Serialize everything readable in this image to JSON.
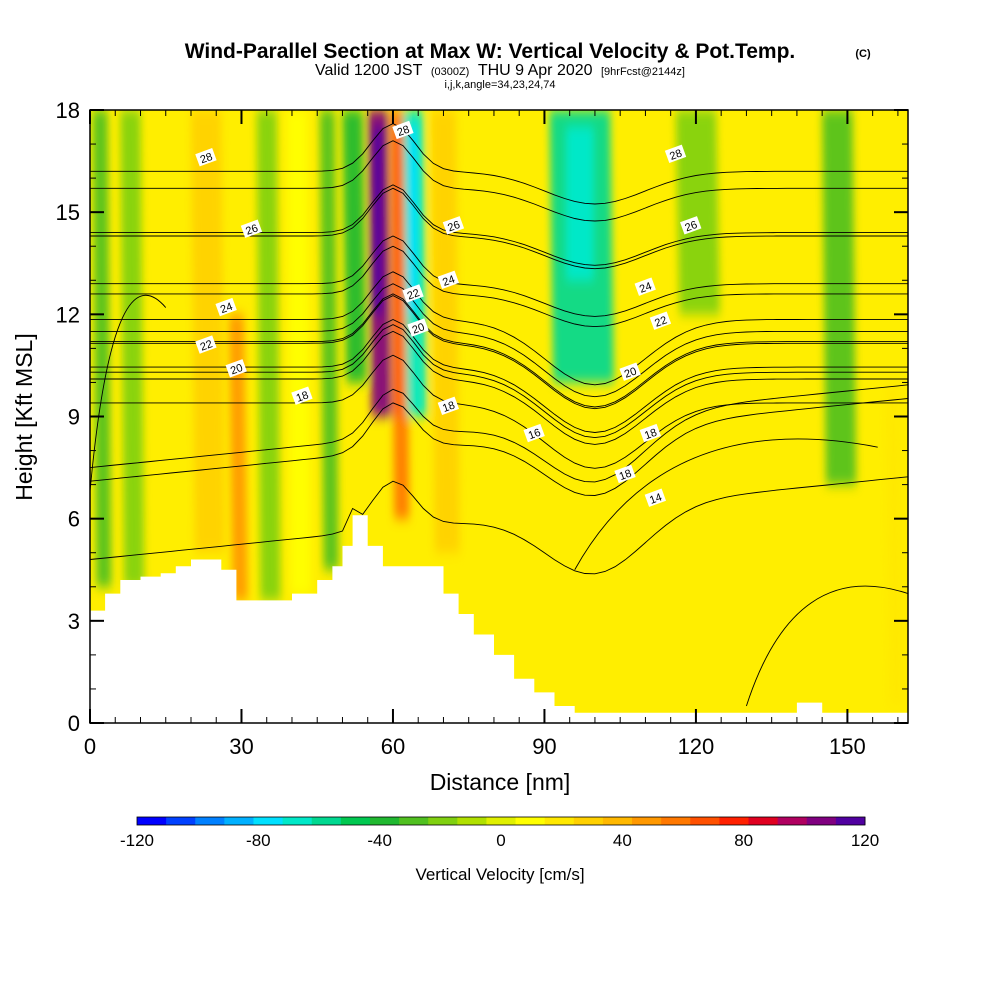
{
  "chart_data": {
    "type": "heatmap",
    "title": "Wind-Parallel Section at Max W: Vertical Velocity & Pot.Temp.",
    "copyright": "(C)",
    "subtitle_valid": "Valid 1200 JST",
    "subtitle_z": "(0300Z)",
    "subtitle_date": "THU 9 Apr 2020",
    "subtitle_fcst": "[9hrFcst@2144z]",
    "subtitle_indices": "i,j,k,angle=34,23,24,74",
    "xlabel": "Distance [nm]",
    "ylabel": "Height [Kft MSL]",
    "xlim": [
      0,
      162
    ],
    "ylim": [
      0,
      18
    ],
    "xticks": [
      "0",
      "30",
      "60",
      "90",
      "120",
      "150"
    ],
    "xtick_values": [
      0,
      30,
      60,
      90,
      120,
      150
    ],
    "yticks": [
      "0",
      "3",
      "6",
      "9",
      "12",
      "15",
      "18"
    ],
    "ytick_values": [
      0,
      3,
      6,
      9,
      12,
      15,
      18
    ],
    "colorbar": {
      "title": "Vertical Velocity [cm/s]",
      "tick_labels": [
        "-120",
        "-80",
        "-40",
        "0",
        "40",
        "80",
        "120"
      ],
      "tick_values": [
        -120,
        -80,
        -40,
        0,
        40,
        80,
        120
      ],
      "range": [
        -120,
        120
      ],
      "colors": [
        "#0000ff",
        "#0040ff",
        "#0080ff",
        "#00b0ff",
        "#00e0ff",
        "#00e8c8",
        "#00d890",
        "#00c850",
        "#20b830",
        "#50c020",
        "#80d010",
        "#b0e000",
        "#e0f000",
        "#ffff00",
        "#ffe800",
        "#ffd000",
        "#ffb800",
        "#ff9800",
        "#ff7800",
        "#ff5000",
        "#ff2000",
        "#e00020",
        "#b00060",
        "#800080",
        "#5000a0"
      ]
    },
    "terrain": {
      "x": [
        0,
        3,
        6,
        10,
        14,
        17,
        20,
        23,
        26,
        29,
        31,
        35,
        40,
        45,
        48,
        50,
        52,
        55,
        58,
        62,
        66,
        70,
        73,
        76,
        80,
        84,
        88,
        92,
        96,
        100,
        104,
        108,
        112,
        116,
        120,
        125,
        130,
        135,
        140,
        145,
        150,
        155,
        160,
        162
      ],
      "y": [
        3.3,
        3.8,
        4.2,
        4.3,
        4.4,
        4.6,
        4.8,
        4.8,
        4.5,
        3.6,
        3.6,
        3.6,
        3.8,
        4.2,
        4.6,
        5.2,
        6.1,
        5.2,
        4.6,
        4.6,
        4.6,
        3.8,
        3.2,
        2.6,
        2.0,
        1.3,
        0.9,
        0.5,
        0.3,
        0.3,
        0.3,
        0.3,
        0.3,
        0.3,
        0.3,
        0.3,
        0.3,
        0.3,
        0.6,
        0.3,
        0.3,
        0.3,
        0.3,
        0.3
      ]
    },
    "velocity_bands": [
      {
        "x": 2,
        "width": 3,
        "value": -30,
        "top": 18,
        "bottom_val": 4
      },
      {
        "x": 8,
        "width": 4,
        "value": -20,
        "top": 18,
        "bottom_val": 4
      },
      {
        "x": 23,
        "width": 6,
        "value": 25,
        "top": 18,
        "bottom_val": 5
      },
      {
        "x": 29,
        "width": 3,
        "value": 45,
        "top": 12,
        "bottom_val": 3.6
      },
      {
        "x": 35,
        "width": 4,
        "value": -20,
        "top": 18,
        "bottom_val": 3.6
      },
      {
        "x": 41,
        "width": 4,
        "value": 10,
        "top": 18,
        "bottom_val": 3.8
      },
      {
        "x": 47,
        "width": 3,
        "value": -25,
        "top": 18,
        "bottom_val": 4.5
      },
      {
        "x": 52,
        "width": 4,
        "value": -40,
        "top": 18,
        "bottom_val": 10
      },
      {
        "x": 57,
        "width": 4,
        "value": 110,
        "top": 18,
        "bottom_val": 9
      },
      {
        "x": 61,
        "width": 3,
        "value": 60,
        "top": 18,
        "bottom_val": 6
      },
      {
        "x": 64,
        "width": 4,
        "value": -70,
        "top": 18,
        "bottom_val": 9
      },
      {
        "x": 70,
        "width": 5,
        "value": 25,
        "top": 18,
        "bottom_val": 5
      },
      {
        "x": 97,
        "width": 12,
        "value": -55,
        "top": 18,
        "bottom_val": 10
      },
      {
        "x": 120,
        "width": 8,
        "value": -20,
        "top": 18,
        "bottom_val": 12
      },
      {
        "x": 148,
        "width": 6,
        "value": -25,
        "top": 18,
        "bottom_val": 7
      },
      {
        "x": 159,
        "width": 3,
        "value": 20,
        "top": 10,
        "bottom_val": 0.5
      }
    ],
    "contours": [
      {
        "label": "28",
        "level": 28,
        "base_y": 16.2
      },
      {
        "label": "26",
        "level": 26,
        "base_y": 14.4
      },
      {
        "label": "24",
        "level": 24,
        "base_y": 12.6
      },
      {
        "label": "22",
        "level": 22,
        "base_y": 11.2
      },
      {
        "label": "20",
        "level": 20,
        "base_y": 10.3
      },
      {
        "label": "18",
        "level": 18,
        "base_y": 9.4
      },
      {
        "label": "16",
        "level": 16,
        "base_y": 8.3
      },
      {
        "label": "14",
        "level": 14,
        "base_y": 6.0
      }
    ],
    "contour_labels": [
      {
        "text": "28",
        "x": 23,
        "y": 16.6
      },
      {
        "text": "28",
        "x": 62,
        "y": 17.4
      },
      {
        "text": "28",
        "x": 116,
        "y": 16.7
      },
      {
        "text": "26",
        "x": 32,
        "y": 14.5
      },
      {
        "text": "26",
        "x": 72,
        "y": 14.6
      },
      {
        "text": "26",
        "x": 119,
        "y": 14.6
      },
      {
        "text": "24",
        "x": 27,
        "y": 12.2
      },
      {
        "text": "24",
        "x": 71,
        "y": 13.0
      },
      {
        "text": "24",
        "x": 110,
        "y": 12.8
      },
      {
        "text": "22",
        "x": 23,
        "y": 11.1
      },
      {
        "text": "22",
        "x": 64,
        "y": 12.6
      },
      {
        "text": "22",
        "x": 113,
        "y": 11.8
      },
      {
        "text": "20",
        "x": 29,
        "y": 10.4
      },
      {
        "text": "20",
        "x": 65,
        "y": 11.6
      },
      {
        "text": "20",
        "x": 107,
        "y": 10.3
      },
      {
        "text": "18",
        "x": 42,
        "y": 9.6
      },
      {
        "text": "18",
        "x": 71,
        "y": 9.3
      },
      {
        "text": "18",
        "x": 111,
        "y": 8.5
      },
      {
        "text": "18",
        "x": 106,
        "y": 7.3
      },
      {
        "text": "16",
        "x": 88,
        "y": 8.5
      },
      {
        "text": "14",
        "x": 112,
        "y": 6.6
      }
    ]
  }
}
